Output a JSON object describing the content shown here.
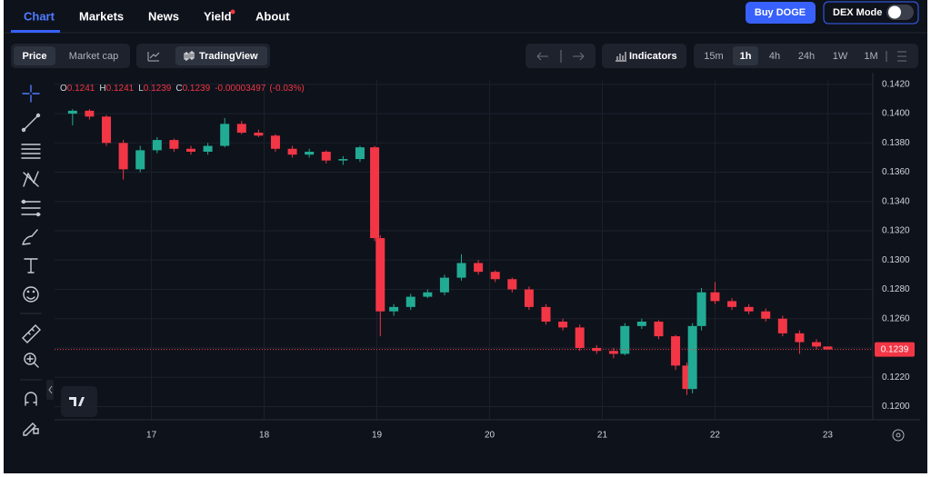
{
  "nav": {
    "tabs": [
      "Chart",
      "Markets",
      "News",
      "Yield",
      "About"
    ],
    "active_tab": 0,
    "buy_button": "Buy DOGE",
    "dex_mode": "DEX Mode"
  },
  "toolbar": {
    "chart_modes": [
      "Price",
      "Market cap"
    ],
    "active_mode": 0,
    "tradingview": "TradingView",
    "indicators": "Indicators",
    "intervals": [
      "15m",
      "1h",
      "4h",
      "24h",
      "1W",
      "1M"
    ],
    "active_interval": 1
  },
  "chart_data": {
    "type": "candlestick",
    "readout": {
      "items": [
        {
          "key": "O",
          "value": 0.1241
        },
        {
          "key": "H",
          "value": 0.1241
        },
        {
          "key": "L",
          "value": 0.1239
        },
        {
          "key": "C",
          "value": 0.1239
        }
      ],
      "change": -3.497e-05,
      "change_pct": "(-0.03%)"
    },
    "x": [
      16.3,
      16.45,
      16.6,
      16.75,
      16.9,
      17.05,
      17.2,
      17.35,
      17.5,
      17.65,
      17.8,
      17.95,
      18.1,
      18.25,
      18.4,
      18.55,
      18.7,
      18.85,
      18.98,
      19.03,
      19.15,
      19.3,
      19.45,
      19.6,
      19.75,
      19.9,
      20.05,
      20.2,
      20.35,
      20.5,
      20.65,
      20.8,
      20.95,
      21.1,
      21.2,
      21.35,
      21.5,
      21.65,
      21.75,
      21.8,
      21.88,
      22.0,
      22.15,
      22.3,
      22.45,
      22.6,
      22.75,
      22.9,
      23.0
    ],
    "open": [
      0.14,
      0.1402,
      0.1398,
      0.138,
      0.1362,
      0.1375,
      0.1382,
      0.1376,
      0.1374,
      0.1378,
      0.1393,
      0.1387,
      0.1385,
      0.1376,
      0.1372,
      0.1374,
      0.1368,
      0.1369,
      0.1377,
      0.1315,
      0.1265,
      0.1268,
      0.1275,
      0.1278,
      0.1288,
      0.1298,
      0.1292,
      0.1287,
      0.128,
      0.1268,
      0.1258,
      0.1254,
      0.124,
      0.1238,
      0.1236,
      0.1255,
      0.1258,
      0.1248,
      0.1228,
      0.1212,
      0.1255,
      0.1278,
      0.1272,
      0.1268,
      0.1265,
      0.126,
      0.125,
      0.1244,
      0.1241
    ],
    "high": [
      0.1403,
      0.1403,
      0.1399,
      0.1382,
      0.1378,
      0.1384,
      0.1383,
      0.1378,
      0.138,
      0.1397,
      0.1395,
      0.1389,
      0.1386,
      0.1378,
      0.1376,
      0.1375,
      0.1371,
      0.1378,
      0.1378,
      0.1317,
      0.127,
      0.1277,
      0.128,
      0.129,
      0.1304,
      0.13,
      0.1293,
      0.1288,
      0.1282,
      0.127,
      0.126,
      0.1256,
      0.1242,
      0.124,
      0.1257,
      0.126,
      0.1259,
      0.1249,
      0.123,
      0.1257,
      0.1281,
      0.1285,
      0.1274,
      0.127,
      0.1267,
      0.1262,
      0.1252,
      0.1246,
      0.1241
    ],
    "low": [
      0.1392,
      0.1396,
      0.1378,
      0.1355,
      0.136,
      0.1373,
      0.1374,
      0.1372,
      0.1372,
      0.1377,
      0.1386,
      0.1384,
      0.1374,
      0.137,
      0.137,
      0.1366,
      0.1365,
      0.1367,
      0.1313,
      0.1248,
      0.1262,
      0.1266,
      0.1274,
      0.1276,
      0.1286,
      0.129,
      0.1285,
      0.1278,
      0.1266,
      0.1256,
      0.1252,
      0.1238,
      0.1236,
      0.1233,
      0.1235,
      0.1253,
      0.1246,
      0.1225,
      0.1208,
      0.1209,
      0.1252,
      0.127,
      0.1266,
      0.1263,
      0.1258,
      0.1248,
      0.1236,
      0.1239,
      0.1239
    ],
    "close": [
      0.1402,
      0.1398,
      0.138,
      0.1362,
      0.1375,
      0.1382,
      0.1376,
      0.1374,
      0.1378,
      0.1393,
      0.1387,
      0.1385,
      0.1376,
      0.1372,
      0.1374,
      0.1368,
      0.1369,
      0.1377,
      0.1315,
      0.1265,
      0.1268,
      0.1275,
      0.1278,
      0.1288,
      0.1298,
      0.1292,
      0.1287,
      0.128,
      0.1268,
      0.1258,
      0.1254,
      0.124,
      0.1238,
      0.1236,
      0.1255,
      0.1258,
      0.1248,
      0.1228,
      0.1212,
      0.1255,
      0.1278,
      0.1272,
      0.1268,
      0.1265,
      0.126,
      0.125,
      0.1244,
      0.1241,
      0.1239
    ],
    "up_color": "#22ab94",
    "down_color": "#f23645",
    "last_price": 0.1239,
    "xlim": [
      16.14,
      23.4
    ],
    "xticks": [
      17,
      18,
      19,
      20,
      21,
      22,
      23
    ],
    "ylim": [
      0.1191,
      0.1423
    ],
    "yticks": [
      {
        "value": 0.12,
        "label": "0.1200"
      },
      {
        "value": 0.122,
        "label": "0.1220"
      },
      {
        "value": 0.124,
        "label": "0.1240"
      },
      {
        "value": 0.126,
        "label": "0.1260"
      },
      {
        "value": 0.128,
        "label": "0.1280"
      },
      {
        "value": 0.13,
        "label": "0.1300"
      },
      {
        "value": 0.132,
        "label": "0.1320"
      },
      {
        "value": 0.134,
        "label": "0.1340"
      },
      {
        "value": 0.136,
        "label": "0.1360"
      },
      {
        "value": 0.138,
        "label": "0.1380"
      },
      {
        "value": 0.14,
        "label": "0.1400"
      },
      {
        "value": 0.142,
        "label": "0.1420"
      }
    ],
    "grid": true
  }
}
